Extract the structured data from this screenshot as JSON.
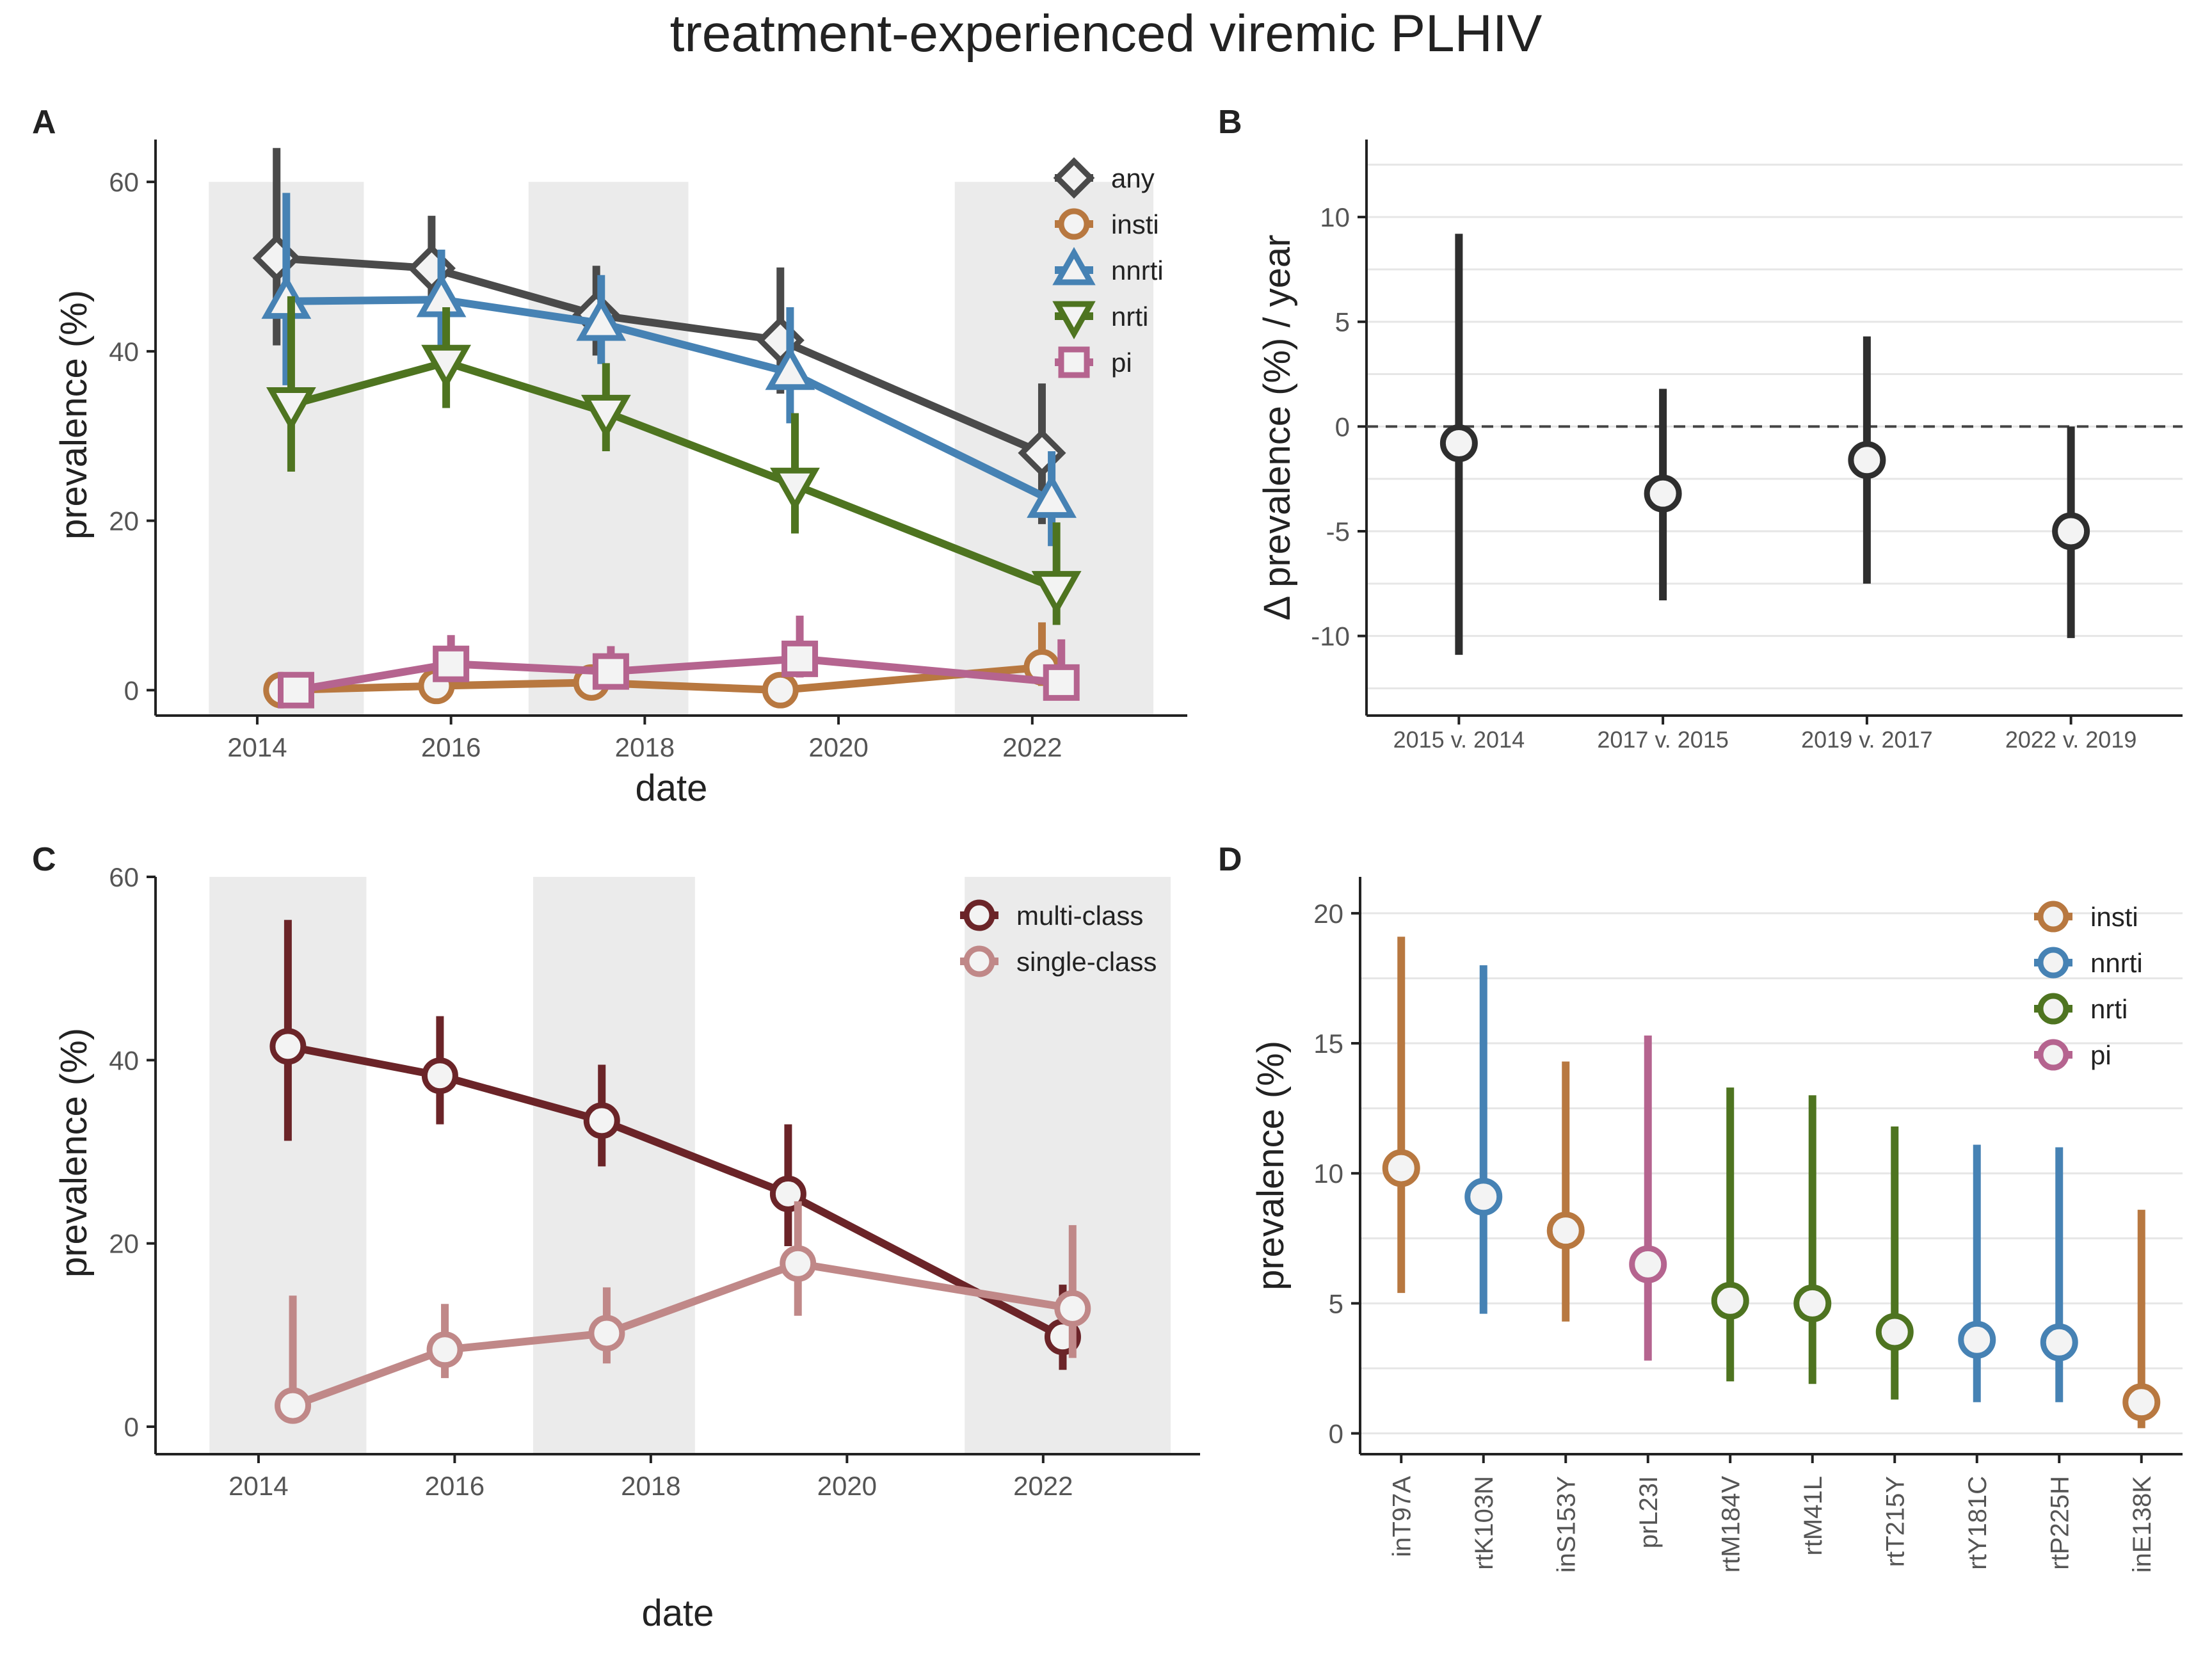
{
  "title": "treatment-experienced viremic PLHIV",
  "panel_letters": [
    "A",
    "B",
    "C",
    "D"
  ],
  "colors": {
    "any": "#4a4a4a",
    "insti": "#b87840",
    "nnrti": "#4682b4",
    "nrti": "#4e7420",
    "pi": "#b5648f",
    "multi": "#6b2428",
    "single": "#c08888",
    "pointB": "#2e2e2e",
    "shade": "#ebebeb",
    "grid": "#e6e6e6"
  },
  "chart_data": [
    {
      "id": "A",
      "type": "line",
      "xlabel": "date",
      "ylabel": "prevalence (%)",
      "x_ticks": [
        "2014",
        "2016",
        "2018",
        "2020",
        "2022"
      ],
      "y_ticks": [
        "0",
        "20",
        "40",
        "60"
      ],
      "xlim": [
        2012.95,
        2023.6
      ],
      "ylim": [
        -3,
        65
      ],
      "shaded_ranges": [
        [
          2013.5,
          2015.1
        ],
        [
          2016.8,
          2018.45
        ],
        [
          2021.2,
          2023.25
        ]
      ],
      "legend": [
        "any",
        "insti",
        "nnrti",
        "nrti",
        "pi"
      ],
      "series": [
        {
          "name": "any",
          "marker": "diamond",
          "points": [
            {
              "x": 2014.2,
              "y": 51,
              "lo": 40.7,
              "hi": 64
            },
            {
              "x": 2015.8,
              "y": 49.8,
              "lo": 44.2,
              "hi": 56
            },
            {
              "x": 2017.5,
              "y": 44.3,
              "lo": 39.5,
              "hi": 50.1
            },
            {
              "x": 2019.4,
              "y": 41.3,
              "lo": 35,
              "hi": 49.9
            },
            {
              "x": 2022.1,
              "y": 28,
              "lo": 19.6,
              "hi": 36.2
            }
          ]
        },
        {
          "name": "insti",
          "marker": "circle",
          "points": [
            {
              "x": 2014.25,
              "y": 0,
              "lo": 0,
              "hi": 0
            },
            {
              "x": 2015.85,
              "y": 0.5,
              "lo": 0,
              "hi": 1.5
            },
            {
              "x": 2017.45,
              "y": 0.9,
              "lo": 0,
              "hi": 2
            },
            {
              "x": 2019.4,
              "y": 0,
              "lo": 0,
              "hi": 0
            },
            {
              "x": 2022.1,
              "y": 2.7,
              "lo": 0.5,
              "hi": 8
            }
          ]
        },
        {
          "name": "nnrti",
          "marker": "triangle-up",
          "points": [
            {
              "x": 2014.3,
              "y": 45.9,
              "lo": 36,
              "hi": 58.7
            },
            {
              "x": 2015.9,
              "y": 46.1,
              "lo": 39.5,
              "hi": 52
            },
            {
              "x": 2017.55,
              "y": 43.3,
              "lo": 38.5,
              "hi": 49
            },
            {
              "x": 2019.5,
              "y": 37.5,
              "lo": 31.5,
              "hi": 45.2
            },
            {
              "x": 2022.2,
              "y": 22.4,
              "lo": 17,
              "hi": 28.2
            }
          ]
        },
        {
          "name": "nrti",
          "marker": "triangle-down",
          "points": [
            {
              "x": 2014.35,
              "y": 33.7,
              "lo": 25.8,
              "hi": 46.5
            },
            {
              "x": 2015.95,
              "y": 38.7,
              "lo": 33.3,
              "hi": 45.2
            },
            {
              "x": 2017.6,
              "y": 32.8,
              "lo": 28.2,
              "hi": 38.6
            },
            {
              "x": 2019.55,
              "y": 24.2,
              "lo": 18.5,
              "hi": 32.7
            },
            {
              "x": 2022.25,
              "y": 12,
              "lo": 7.7,
              "hi": 19.8
            }
          ]
        },
        {
          "name": "pi",
          "marker": "square",
          "points": [
            {
              "x": 2014.4,
              "y": 0,
              "lo": 0,
              "hi": 0
            },
            {
              "x": 2016.0,
              "y": 3.1,
              "lo": 1.5,
              "hi": 6.5
            },
            {
              "x": 2017.65,
              "y": 2.2,
              "lo": 0.5,
              "hi": 5.2
            },
            {
              "x": 2019.6,
              "y": 3.7,
              "lo": 1.5,
              "hi": 8.8
            },
            {
              "x": 2022.3,
              "y": 0.9,
              "lo": 0,
              "hi": 6
            }
          ]
        }
      ]
    },
    {
      "id": "B",
      "type": "scatter",
      "xlabel": "",
      "ylabel": "Δ prevalence (%) / year",
      "categories": [
        "2015 v. 2014",
        "2017 v. 2015",
        "2019 v. 2017",
        "2022 v. 2019"
      ],
      "values": [
        -0.8,
        -3.2,
        -1.6,
        -5
      ],
      "lo": [
        -10.9,
        -8.3,
        -7.5,
        -10.1
      ],
      "hi": [
        9.2,
        1.8,
        4.3,
        0
      ],
      "y_ticks": [
        "-10",
        "-5",
        "0",
        "5",
        "10"
      ],
      "ylim": [
        -13.8,
        13.7
      ],
      "reference_line": 0
    },
    {
      "id": "C",
      "type": "line",
      "xlabel": "date",
      "ylabel": "prevalence (%)",
      "x_ticks": [
        "2014",
        "2016",
        "2018",
        "2020",
        "2022"
      ],
      "y_ticks": [
        "0",
        "20",
        "40",
        "60"
      ],
      "xlim": [
        2012.95,
        2023.6
      ],
      "ylim": [
        -3,
        60
      ],
      "shaded_ranges": [
        [
          2013.5,
          2015.1
        ],
        [
          2016.8,
          2018.45
        ],
        [
          2021.2,
          2023.3
        ]
      ],
      "legend": [
        "multi-class",
        "single-class"
      ],
      "series": [
        {
          "name": "multi-class",
          "marker": "circle",
          "points": [
            {
              "x": 2014.3,
              "y": 41.5,
              "lo": 31.2,
              "hi": 55.3
            },
            {
              "x": 2015.85,
              "y": 38.3,
              "lo": 33,
              "hi": 44.8
            },
            {
              "x": 2017.5,
              "y": 33.4,
              "lo": 28.4,
              "hi": 39.5
            },
            {
              "x": 2019.4,
              "y": 25.4,
              "lo": 19.7,
              "hi": 33
            },
            {
              "x": 2022.2,
              "y": 9.8,
              "lo": 6.2,
              "hi": 15.5
            }
          ]
        },
        {
          "name": "single-class",
          "marker": "circle",
          "points": [
            {
              "x": 2014.35,
              "y": 2.3,
              "lo": 0.5,
              "hi": 14.3
            },
            {
              "x": 2015.9,
              "y": 8.4,
              "lo": 5.3,
              "hi": 13.4
            },
            {
              "x": 2017.55,
              "y": 10.2,
              "lo": 6.9,
              "hi": 15.2
            },
            {
              "x": 2019.5,
              "y": 17.8,
              "lo": 12.1,
              "hi": 24.6
            },
            {
              "x": 2022.3,
              "y": 12.9,
              "lo": 7.5,
              "hi": 22
            }
          ]
        }
      ]
    },
    {
      "id": "D",
      "type": "scatter",
      "xlabel": "",
      "ylabel": "prevalence (%)",
      "categories": [
        "inT97A",
        "rtK103N",
        "inS153Y",
        "prL23I",
        "rtM184V",
        "rtM41L",
        "rtT215Y",
        "rtY181C",
        "rtP225H",
        "inE138K"
      ],
      "classes": [
        "insti",
        "nnrti",
        "insti",
        "pi",
        "nrti",
        "nrti",
        "nrti",
        "nnrti",
        "nnrti",
        "insti"
      ],
      "values": [
        10.2,
        9.1,
        7.8,
        6.5,
        5.1,
        5,
        3.9,
        3.6,
        3.5,
        1.2
      ],
      "lo": [
        5.4,
        4.6,
        4.3,
        2.8,
        2,
        1.9,
        1.3,
        1.2,
        1.2,
        0.2
      ],
      "hi": [
        19.1,
        18,
        14.3,
        15.3,
        13.3,
        13,
        11.8,
        11.1,
        11,
        8.6
      ],
      "y_ticks": [
        "0",
        "5",
        "10",
        "15",
        "20"
      ],
      "ylim": [
        -0.8,
        21.4
      ],
      "legend": [
        "insti",
        "nnrti",
        "nrti",
        "pi"
      ]
    }
  ]
}
